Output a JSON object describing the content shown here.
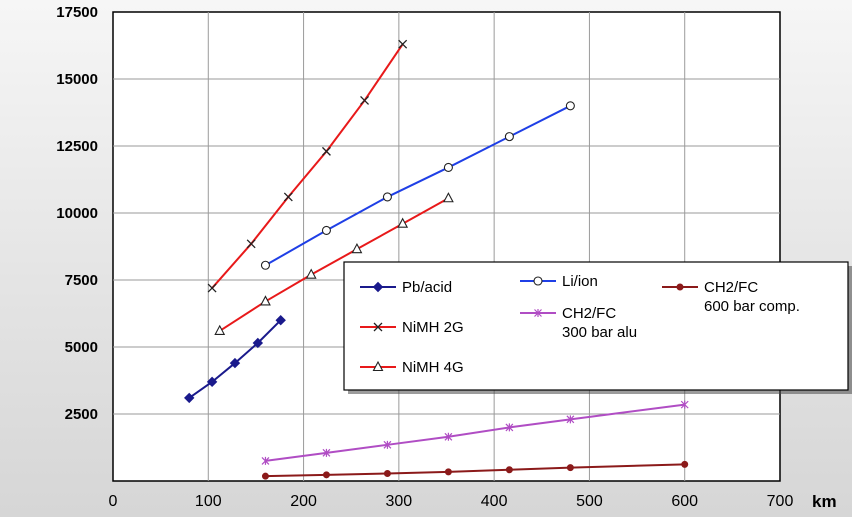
{
  "chart_data": {
    "type": "line",
    "xlabel": "km",
    "ylabel": "",
    "xlim": [
      0,
      700
    ],
    "ylim": [
      0,
      17500
    ],
    "x_ticks": [
      "0",
      "100",
      "200",
      "300",
      "400",
      "500",
      "600",
      "700"
    ],
    "y_ticks": [
      "2500",
      "5000",
      "7500",
      "10000",
      "12500",
      "15000",
      "17500"
    ],
    "grid": true,
    "legend_position": "right, middle",
    "series": [
      {
        "name": "Pb/acid",
        "color": "#1a1a8c",
        "marker": "diamond",
        "x": [
          80,
          104,
          128,
          152,
          176
        ],
        "y": [
          3100,
          3700,
          4400,
          5150,
          6000
        ]
      },
      {
        "name": "NiMH 2G",
        "color": "#e8191a",
        "marker": "x",
        "x": [
          104,
          145,
          184,
          224,
          264,
          304
        ],
        "y": [
          7200,
          8850,
          10600,
          12300,
          14200,
          16300
        ]
      },
      {
        "name": "NiMH 4G",
        "color": "#e8191a",
        "marker": "triangle",
        "x": [
          112,
          160,
          208,
          256,
          304,
          352
        ],
        "y": [
          5600,
          6700,
          7700,
          8650,
          9600,
          10550
        ]
      },
      {
        "name": "Li/ion",
        "color": "#1f3fe6",
        "marker": "circle",
        "x": [
          160,
          224,
          288,
          352,
          416,
          480
        ],
        "y": [
          8050,
          9350,
          10600,
          11700,
          12850,
          14000
        ]
      },
      {
        "name_lines": [
          "CH2/FC",
          "300 bar alu"
        ],
        "color": "#b04dc4",
        "marker": "star",
        "x": [
          160,
          224,
          288,
          352,
          416,
          480,
          600
        ],
        "y": [
          750,
          1050,
          1350,
          1650,
          2000,
          2300,
          2850
        ]
      },
      {
        "name_lines": [
          "CH2/FC",
          "600 bar comp."
        ],
        "color": "#8b1a1a",
        "marker": "dot",
        "x": [
          160,
          224,
          288,
          352,
          416,
          480,
          600
        ],
        "y": [
          180,
          230,
          280,
          340,
          420,
          500,
          620
        ]
      }
    ]
  }
}
